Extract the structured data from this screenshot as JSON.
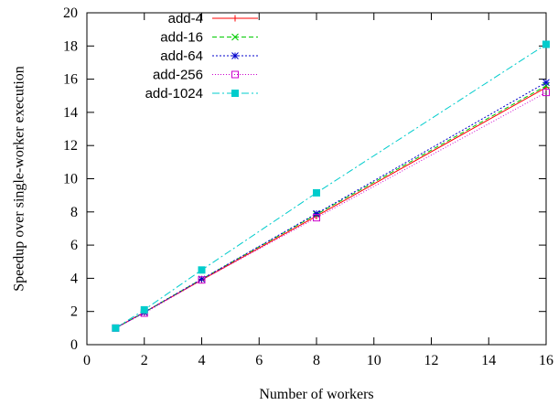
{
  "chart_data": {
    "type": "line",
    "xlabel": "Number of workers",
    "ylabel": "Speedup over single-worker execution",
    "xlim": [
      0,
      16
    ],
    "ylim": [
      0,
      20
    ],
    "xticks": [
      0,
      2,
      4,
      6,
      8,
      10,
      12,
      14,
      16
    ],
    "yticks": [
      0,
      2,
      4,
      6,
      8,
      10,
      12,
      14,
      16,
      18,
      20
    ],
    "grid": false,
    "legend_position": "top-left",
    "x": [
      1,
      2,
      4,
      8,
      16
    ],
    "series": [
      {
        "name": "add-4",
        "values": [
          1,
          1.95,
          3.9,
          7.75,
          15.5
        ],
        "color": "#ff0000",
        "marker": "plus",
        "dash": "solid"
      },
      {
        "name": "add-16",
        "values": [
          1,
          1.95,
          3.95,
          7.85,
          15.6
        ],
        "color": "#00cc00",
        "marker": "x",
        "dash": "dashed"
      },
      {
        "name": "add-64",
        "values": [
          1,
          1.95,
          3.95,
          7.9,
          15.8
        ],
        "color": "#0000cc",
        "marker": "star",
        "dash": "dotted"
      },
      {
        "name": "add-256",
        "values": [
          1,
          1.9,
          3.9,
          7.65,
          15.2
        ],
        "color": "#cc00cc",
        "marker": "square",
        "dash": "finedot"
      },
      {
        "name": "add-1024",
        "values": [
          1,
          2.1,
          4.5,
          9.15,
          18.1
        ],
        "color": "#00cccc",
        "marker": "filled-square",
        "dash": "dashdot"
      }
    ]
  }
}
